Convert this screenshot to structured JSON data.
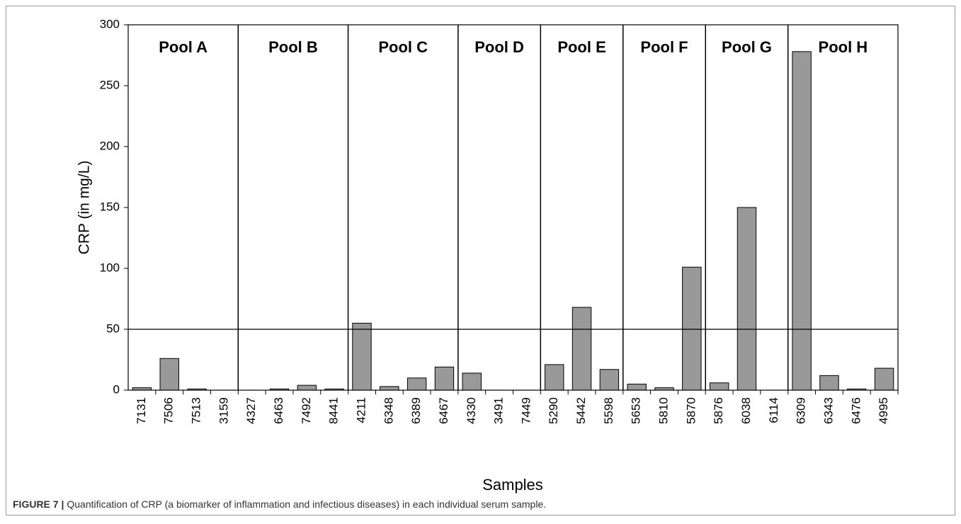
{
  "chart_data": {
    "type": "bar",
    "y_label": "CRP (in mg/L)",
    "x_label": "Samples",
    "groups": [
      {
        "name": "Pool A",
        "categories": [
          "7131",
          "7506",
          "7513",
          "3159"
        ],
        "values": [
          2,
          26,
          1,
          0
        ]
      },
      {
        "name": "Pool B",
        "categories": [
          "4327",
          "6463",
          "7492",
          "8441"
        ],
        "values": [
          0,
          1,
          4,
          1
        ]
      },
      {
        "name": "Pool C",
        "categories": [
          "4211",
          "6348",
          "6389",
          "6467"
        ],
        "values": [
          55,
          3,
          10,
          19
        ]
      },
      {
        "name": "Pool D",
        "categories": [
          "4330",
          "3491",
          "7449"
        ],
        "values": [
          14,
          0,
          0
        ]
      },
      {
        "name": "Pool E",
        "categories": [
          "5290",
          "5442",
          "5598"
        ],
        "values": [
          21,
          68,
          17
        ]
      },
      {
        "name": "Pool F",
        "categories": [
          "5653",
          "5810",
          "5870"
        ],
        "values": [
          5,
          2,
          101
        ]
      },
      {
        "name": "Pool G",
        "categories": [
          "5876",
          "6038",
          "6114"
        ],
        "values": [
          6,
          150,
          0
        ]
      },
      {
        "name": "Pool H",
        "categories": [
          "6309",
          "6343",
          "6476",
          "4995"
        ],
        "values": [
          278,
          12,
          1,
          18
        ]
      }
    ],
    "color": "#999999",
    "reference_line": 50,
    "ylim": [
      0,
      300
    ],
    "yticks": [
      0,
      50,
      100,
      150,
      200,
      250,
      300
    ]
  },
  "caption": {
    "label": "FIGURE 7 |",
    "text": "Quantification of CRP (a biomarker of inflammation and infectious diseases) in each individual serum sample."
  }
}
